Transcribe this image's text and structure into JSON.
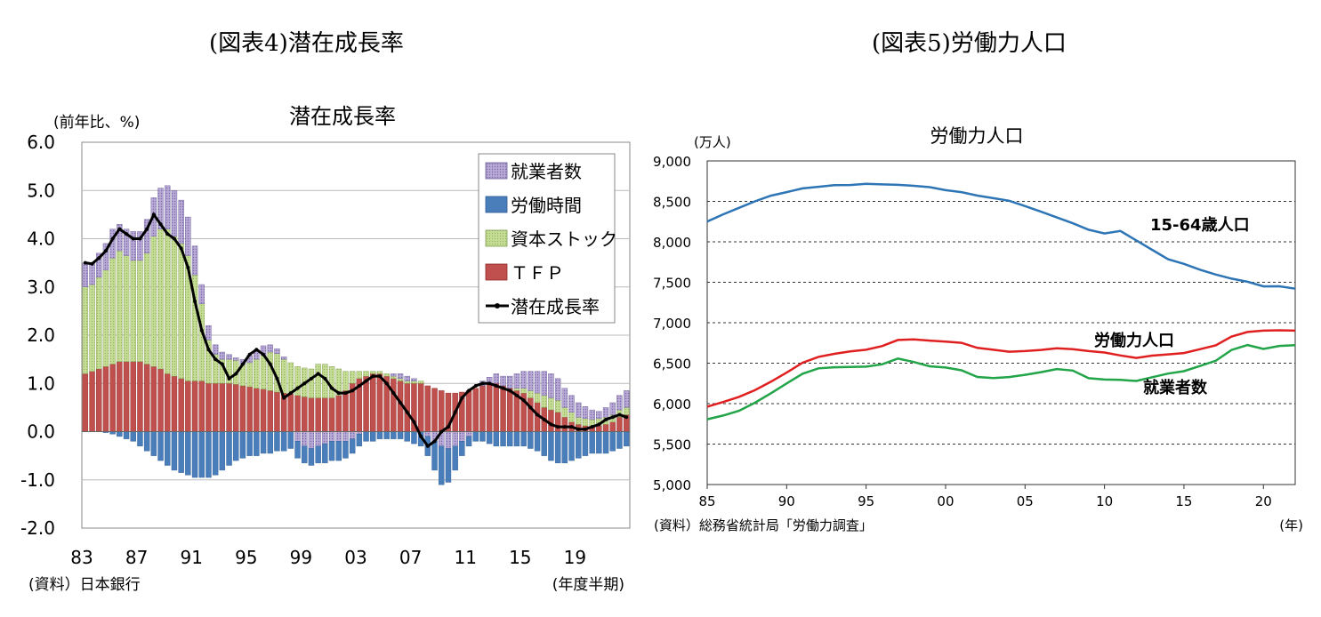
{
  "page": {
    "left_title": "(図表4)潜在成長率",
    "right_title": "(図表5)労働力人口"
  },
  "chart_data": [
    {
      "type": "bar",
      "stacked": true,
      "title": "潜在成長率",
      "unit_label": "(前年比、%)",
      "source": "(資料）日本銀行",
      "x_unit": "(年度半期)",
      "ylim": [
        -2.0,
        6.0
      ],
      "yticks": [
        "6.0",
        "5.0",
        "4.0",
        "3.0",
        "2.0",
        "1.0",
        "0.0",
        "-1.0",
        "-2.0"
      ],
      "xtick_labels": [
        "83",
        "87",
        "91",
        "95",
        "99",
        "03",
        "07",
        "11",
        "15",
        "19"
      ],
      "legend_position": "top-right",
      "grid": true,
      "legend": [
        "就業者数",
        "労働時間",
        "資本ストック",
        "ＴＦＰ",
        "潜在成長率"
      ],
      "colors": {
        "employment": "#b8a9d6",
        "hours": "#4a7ebb",
        "capital": "#c4dc94",
        "tfp": "#c0504d",
        "line": "#000000"
      },
      "series": [
        {
          "name": "ＴＦＰ",
          "key": "tfp",
          "values": [
            1.2,
            1.25,
            1.3,
            1.35,
            1.4,
            1.45,
            1.45,
            1.45,
            1.45,
            1.4,
            1.35,
            1.3,
            1.2,
            1.15,
            1.1,
            1.05,
            1.05,
            1.05,
            1.0,
            1.0,
            1.0,
            1.0,
            0.98,
            0.95,
            0.93,
            0.9,
            0.88,
            0.85,
            0.82,
            0.8,
            0.78,
            0.75,
            0.72,
            0.7,
            0.7,
            0.7,
            0.7,
            0.75,
            0.85,
            1.0,
            1.1,
            1.15,
            1.2,
            1.2,
            1.15,
            1.1,
            1.05,
            1.0,
            1.0,
            1.0,
            0.95,
            0.9,
            0.85,
            0.8,
            0.8,
            0.82,
            0.85,
            0.9,
            0.95,
            0.98,
            1.0,
            0.95,
            0.9,
            0.85,
            0.8,
            0.7,
            0.6,
            0.5,
            0.45,
            0.4,
            0.3,
            0.2,
            0.15,
            0.12,
            0.1,
            0.12,
            0.15,
            0.2,
            0.3,
            0.35
          ]
        },
        {
          "name": "資本ストック",
          "key": "capital",
          "values": [
            1.8,
            1.8,
            1.9,
            2.0,
            2.2,
            2.3,
            2.2,
            2.1,
            2.1,
            2.3,
            2.7,
            2.9,
            3.0,
            2.9,
            2.8,
            2.6,
            2.2,
            1.6,
            0.9,
            0.6,
            0.5,
            0.5,
            0.5,
            0.45,
            0.5,
            0.6,
            0.7,
            0.8,
            0.8,
            0.7,
            0.65,
            0.6,
            0.6,
            0.6,
            0.7,
            0.7,
            0.65,
            0.55,
            0.4,
            0.25,
            0.15,
            0.1,
            0.05,
            0.05,
            0.05,
            0.05,
            0.05,
            0.05,
            0.05,
            0.05,
            0.0,
            0.0,
            0.0,
            0.0,
            0.0,
            0.0,
            0.0,
            0.0,
            0.0,
            0.0,
            0.0,
            0.0,
            0.0,
            0.05,
            0.1,
            0.15,
            0.2,
            0.25,
            0.25,
            0.25,
            0.2,
            0.2,
            0.15,
            0.15,
            0.15,
            0.15,
            0.15,
            0.15,
            0.15,
            0.15
          ]
        },
        {
          "name": "就業者数",
          "key": "employment",
          "values": [
            0.5,
            0.45,
            0.5,
            0.55,
            0.6,
            0.55,
            0.55,
            0.6,
            0.6,
            0.7,
            0.8,
            0.85,
            0.9,
            0.95,
            0.9,
            0.8,
            0.6,
            0.4,
            0.3,
            0.2,
            0.15,
            0.1,
            0.05,
            0.1,
            0.15,
            0.2,
            0.2,
            0.15,
            0.1,
            0.05,
            0.0,
            -0.2,
            -0.3,
            -0.35,
            -0.3,
            -0.25,
            -0.2,
            -0.2,
            -0.2,
            -0.15,
            -0.05,
            0.0,
            0.0,
            0.0,
            0.0,
            0.05,
            0.1,
            0.1,
            0.05,
            0.0,
            -0.1,
            -0.2,
            -0.3,
            -0.35,
            -0.3,
            -0.2,
            -0.1,
            0.0,
            0.1,
            0.15,
            0.2,
            0.2,
            0.25,
            0.3,
            0.35,
            0.4,
            0.45,
            0.5,
            0.5,
            0.45,
            0.4,
            0.35,
            0.3,
            0.25,
            0.2,
            0.15,
            0.2,
            0.25,
            0.3,
            0.35
          ]
        },
        {
          "name": "労働時間",
          "key": "hours",
          "values": [
            0.0,
            0.0,
            0.0,
            -0.02,
            -0.05,
            -0.1,
            -0.15,
            -0.2,
            -0.3,
            -0.4,
            -0.5,
            -0.6,
            -0.7,
            -0.8,
            -0.85,
            -0.9,
            -0.95,
            -0.95,
            -0.95,
            -0.9,
            -0.8,
            -0.7,
            -0.6,
            -0.55,
            -0.5,
            -0.5,
            -0.45,
            -0.45,
            -0.4,
            -0.4,
            -0.35,
            -0.35,
            -0.35,
            -0.35,
            -0.35,
            -0.4,
            -0.4,
            -0.4,
            -0.35,
            -0.3,
            -0.25,
            -0.2,
            -0.2,
            -0.15,
            -0.15,
            -0.15,
            -0.15,
            -0.2,
            -0.25,
            -0.3,
            -0.4,
            -0.6,
            -0.8,
            -0.7,
            -0.5,
            -0.3,
            -0.2,
            -0.2,
            -0.2,
            -0.25,
            -0.3,
            -0.3,
            -0.3,
            -0.3,
            -0.3,
            -0.35,
            -0.4,
            -0.5,
            -0.6,
            -0.65,
            -0.65,
            -0.6,
            -0.55,
            -0.5,
            -0.45,
            -0.45,
            -0.45,
            -0.4,
            -0.35,
            -0.3
          ]
        },
        {
          "name": "潜在成長率",
          "key": "line",
          "type": "line",
          "values": [
            3.5,
            3.48,
            3.6,
            3.75,
            4.0,
            4.2,
            4.1,
            4.0,
            4.0,
            4.2,
            4.5,
            4.3,
            4.1,
            4.0,
            3.8,
            3.4,
            2.7,
            2.1,
            1.7,
            1.5,
            1.4,
            1.1,
            1.2,
            1.4,
            1.6,
            1.7,
            1.6,
            1.4,
            1.1,
            0.7,
            0.8,
            0.9,
            1.0,
            1.1,
            1.2,
            1.1,
            0.9,
            0.8,
            0.8,
            0.85,
            0.95,
            1.05,
            1.15,
            1.15,
            1.0,
            0.8,
            0.6,
            0.4,
            0.2,
            -0.1,
            -0.3,
            -0.2,
            0.0,
            0.1,
            0.4,
            0.7,
            0.85,
            0.95,
            1.0,
            1.0,
            0.95,
            0.9,
            0.85,
            0.75,
            0.65,
            0.5,
            0.35,
            0.25,
            0.15,
            0.1,
            0.1,
            0.1,
            0.05,
            0.05,
            0.1,
            0.15,
            0.25,
            0.3,
            0.35,
            0.3
          ]
        }
      ]
    },
    {
      "type": "line",
      "title": "労働力人口",
      "unit_label": "(万人)",
      "source": "(資料）総務省統計局「労働力調査」",
      "x_unit": "(年)",
      "ylim": [
        5000,
        9000
      ],
      "yticks": [
        "9,000",
        "8,500",
        "8,000",
        "7,500",
        "7,000",
        "6,500",
        "6,000",
        "5,500",
        "5,000"
      ],
      "xlim": [
        1985,
        2022
      ],
      "xtick_labels": [
        "85",
        "90",
        "95",
        "00",
        "05",
        "10",
        "15",
        "20"
      ],
      "grid": true,
      "series": [
        {
          "name": "15-64歳人口",
          "color": "#2e75b6",
          "x": [
            1985,
            1986,
            1987,
            1988,
            1989,
            1990,
            1991,
            1992,
            1993,
            1994,
            1995,
            1996,
            1997,
            1998,
            1999,
            2000,
            2001,
            2002,
            2003,
            2004,
            2005,
            2006,
            2007,
            2008,
            2009,
            2010,
            2011,
            2012,
            2013,
            2014,
            2015,
            2016,
            2017,
            2018,
            2019,
            2020,
            2021,
            2022
          ],
          "values": [
            8251,
            8340,
            8420,
            8500,
            8570,
            8614,
            8660,
            8680,
            8701,
            8702,
            8716,
            8710,
            8704,
            8692,
            8676,
            8638,
            8614,
            8571,
            8540,
            8508,
            8442,
            8373,
            8301,
            8230,
            8149,
            8103,
            8134,
            8018,
            7901,
            7785,
            7728,
            7656,
            7596,
            7545,
            7507,
            7449,
            7450,
            7421
          ]
        },
        {
          "name": "労働力人口",
          "color": "#e02020",
          "x": [
            1985,
            1986,
            1987,
            1988,
            1989,
            1990,
            1991,
            1992,
            1993,
            1994,
            1995,
            1996,
            1997,
            1998,
            1999,
            2000,
            2001,
            2002,
            2003,
            2004,
            2005,
            2006,
            2007,
            2008,
            2009,
            2010,
            2011,
            2012,
            2013,
            2014,
            2015,
            2016,
            2017,
            2018,
            2019,
            2020,
            2021,
            2022
          ],
          "values": [
            5963,
            6020,
            6084,
            6166,
            6270,
            6384,
            6505,
            6578,
            6615,
            6645,
            6666,
            6711,
            6787,
            6793,
            6779,
            6766,
            6752,
            6689,
            6666,
            6642,
            6650,
            6664,
            6684,
            6674,
            6650,
            6632,
            6596,
            6565,
            6593,
            6609,
            6625,
            6673,
            6720,
            6830,
            6886,
            6902,
            6907,
            6902
          ]
        },
        {
          "name": "就業者数",
          "color": "#22a448",
          "x": [
            1985,
            1986,
            1987,
            1988,
            1989,
            1990,
            1991,
            1992,
            1993,
            1994,
            1995,
            1996,
            1997,
            1998,
            1999,
            2000,
            2001,
            2002,
            2003,
            2004,
            2005,
            2006,
            2007,
            2008,
            2009,
            2010,
            2011,
            2012,
            2013,
            2014,
            2015,
            2016,
            2017,
            2018,
            2019,
            2020,
            2021,
            2022
          ],
          "values": [
            5807,
            5853,
            5911,
            6011,
            6128,
            6249,
            6369,
            6436,
            6450,
            6453,
            6457,
            6486,
            6557,
            6514,
            6462,
            6446,
            6412,
            6330,
            6316,
            6329,
            6356,
            6389,
            6427,
            6409,
            6314,
            6298,
            6293,
            6280,
            6326,
            6371,
            6401,
            6465,
            6530,
            6664,
            6724,
            6676,
            6713,
            6723
          ]
        }
      ]
    }
  ]
}
